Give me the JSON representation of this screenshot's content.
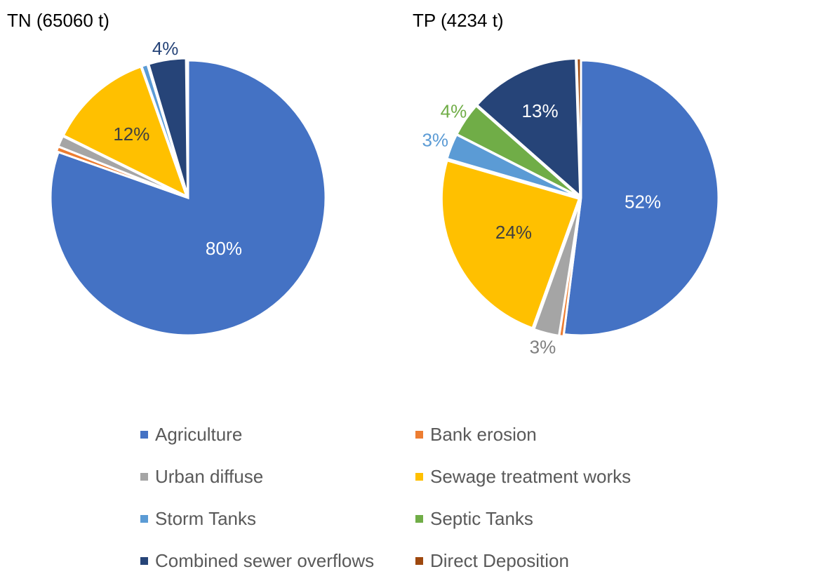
{
  "chart_data": [
    {
      "type": "pie",
      "title": "TN (65060 t)",
      "categories": [
        "Agriculture",
        "Bank erosion",
        "Urban diffuse",
        "Sewage treatment works",
        "Storm Tanks",
        "Septic Tanks",
        "Combined sewer overflows",
        "Direct Deposition"
      ],
      "values": [
        80.4,
        0.6,
        1.3,
        12.3,
        0.7,
        0.1,
        4.4,
        0.2
      ],
      "data_labels": [
        "80%",
        "",
        "",
        "12%",
        "",
        "",
        "4%",
        ""
      ]
    },
    {
      "type": "pie",
      "title": "TP (4234 t)",
      "categories": [
        "Agriculture",
        "Bank erosion",
        "Urban diffuse",
        "Sewage treatment works",
        "Storm Tanks",
        "Septic Tanks",
        "Combined sewer overflows",
        "Direct Deposition"
      ],
      "values": [
        52,
        0.5,
        3,
        24,
        3,
        4,
        13,
        0.5
      ],
      "data_labels": [
        "52%",
        "",
        "3%",
        "24%",
        "3%",
        "4%",
        "13%",
        ""
      ]
    }
  ],
  "legend": {
    "placement": "bottom",
    "items": [
      {
        "label": "Agriculture",
        "color": "#4472C4"
      },
      {
        "label": "Bank erosion",
        "color": "#ED7D31"
      },
      {
        "label": "Urban diffuse",
        "color": "#A5A5A5"
      },
      {
        "label": "Sewage treatment works",
        "color": "#FFC000"
      },
      {
        "label": "Storm Tanks",
        "color": "#5B9BD5"
      },
      {
        "label": "Septic Tanks",
        "color": "#70AD47"
      },
      {
        "label": "Combined sewer overflows",
        "color": "#264478"
      },
      {
        "label": "Direct Deposition",
        "color": "#9E480E"
      }
    ]
  }
}
